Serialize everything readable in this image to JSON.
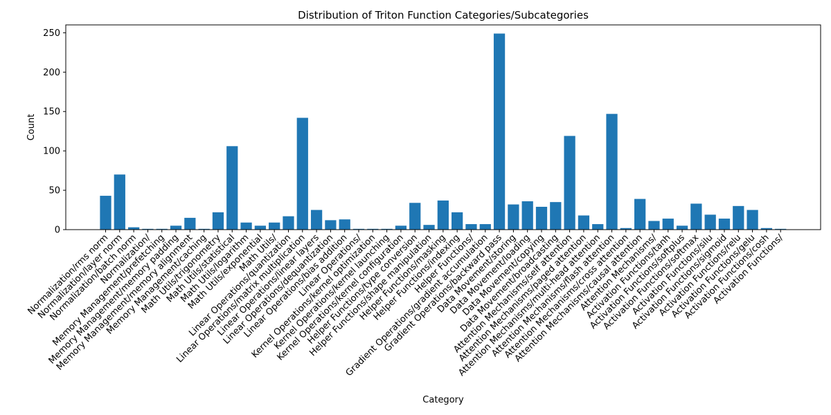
{
  "chart_data": {
    "type": "bar",
    "title": "Distribution of Triton Function Categories/Subcategories",
    "xlabel": "Category",
    "ylabel": "Count",
    "ylim": [
      0,
      260
    ],
    "yticks": [
      0,
      50,
      100,
      150,
      200,
      250
    ],
    "bar_color": "#1f77b4",
    "grid": false,
    "categories": [
      "Normalization/rms norm",
      "Normalization/layer norm",
      "Normalization/batch norm",
      "Normalization/",
      "Memory Management/prefetching",
      "Memory Management/memory padding",
      "Memory Management/memory alignment",
      "Memory Management/caching",
      "Math Utils/trigonometry",
      "Math Utils/statistical",
      "Math Utils/logarithm",
      "Math Utils/exponential",
      "Math Utils/",
      "Linear Operations/quantization",
      "Linear Operations/matrix multiplication",
      "Linear Operations/linear layers",
      "Linear Operations/dequantization",
      "Linear Operations/bias addition",
      "Linear Operations/",
      "Kernel Operations/kernel optimization",
      "Kernel Operations/kernel launching",
      "Kernel Operations/kernel configuration",
      "Helper Functions/type conversion",
      "Helper Functions/shape manipulation",
      "Helper Functions/masking",
      "Helper Functions/indexing",
      "Helper Functions/",
      "Gradient Operations/gradient accumulation",
      "Gradient Operations/backward pass",
      "Data Movement/storing",
      "Data Movement/loading",
      "Data Movement/copying",
      "Data Movement/broadcasting",
      "Attention Mechanisms/self attention",
      "Attention Mechanisms/paged attention",
      "Attention Mechanisms/multi-head attention",
      "Attention Mechanisms/flash attention",
      "Attention Mechanisms/cross attention",
      "Attention Mechanisms/causal attention",
      "Attention Mechanisms/",
      "Activation Functions/tanh",
      "Activation Functions/softplus",
      "Activation Functions/softmax",
      "Activation Functions/silu",
      "Activation Functions/sigmoid",
      "Activation Functions/relu",
      "Activation Functions/gelu",
      "Activation Functions/cosh",
      "Activation Functions/"
    ],
    "values": [
      43,
      70,
      3,
      1,
      1,
      5,
      15,
      1,
      22,
      106,
      9,
      5,
      9,
      17,
      142,
      25,
      12,
      13,
      1,
      1,
      1,
      5,
      34,
      6,
      37,
      22,
      7,
      7,
      249,
      32,
      36,
      29,
      35,
      119,
      18,
      7,
      147,
      2,
      39,
      11,
      14,
      5,
      33,
      19,
      14,
      30,
      25,
      2,
      1
    ]
  }
}
